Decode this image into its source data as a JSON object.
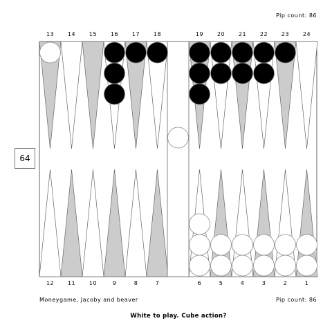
{
  "pip_count_top": "Pip count: 86",
  "pip_count_bottom": "Pip count: 86",
  "game_info": "Moneygame, Jacoby and beaver",
  "prompt": "White to play. Cube action?",
  "cube_value": "64",
  "point_labels_top": [
    "13",
    "14",
    "15",
    "16",
    "17",
    "18",
    "19",
    "20",
    "21",
    "22",
    "23",
    "24"
  ],
  "point_labels_bottom": [
    "12",
    "11",
    "10",
    "9",
    "8",
    "7",
    "6",
    "5",
    "4",
    "3",
    "2",
    "1"
  ],
  "colors": {
    "dark_point": "#cccccc",
    "light_point": "#ffffff",
    "black_checker": "#000000",
    "white_checker": "#ffffff",
    "frame": "#666666"
  },
  "position": {
    "black_checkers": {
      "13": 0,
      "16": 3,
      "17": 1,
      "18": 1,
      "19": 3,
      "20": 2,
      "21": 2,
      "22": 2,
      "23": 1
    },
    "white_checkers": {
      "13": 1,
      "6": 3,
      "5": 2,
      "4": 2,
      "3": 2,
      "2": 2,
      "1": 2
    },
    "white_on_bar": 1
  }
}
